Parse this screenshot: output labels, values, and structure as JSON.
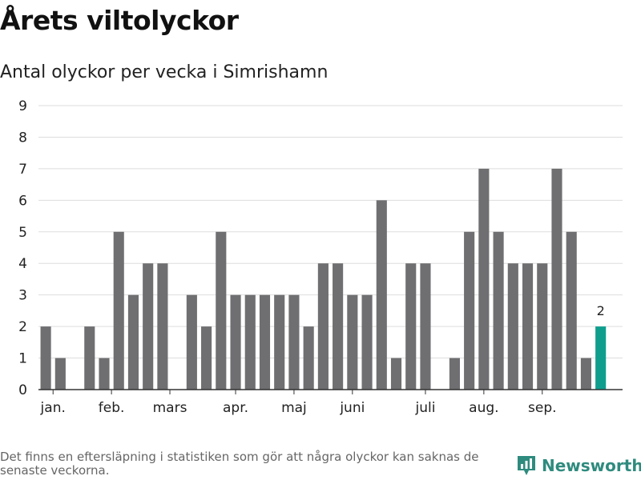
{
  "title": "Årets viltolyckor",
  "subtitle": "Antal olyckor per vecka i Simrishamn",
  "footnote": "Det finns en eftersläpning i statistiken som gör att några olyckor kan saknas de senaste veckorna.",
  "brand": {
    "name": "Newsworthy",
    "icon": "newsworthy-logo-icon",
    "color": "#2e8b7e"
  },
  "colors": {
    "bar": "#6f6f72",
    "highlight": "#0f9e8e",
    "grid": "#dddddd",
    "axis": "#333333"
  },
  "chart_data": {
    "type": "bar",
    "x": [
      1,
      2,
      3,
      4,
      5,
      6,
      7,
      8,
      9,
      10,
      11,
      12,
      13,
      14,
      15,
      16,
      17,
      18,
      19,
      20,
      21,
      22,
      23,
      24,
      25,
      26,
      27,
      28,
      29,
      30,
      31,
      32,
      33,
      34,
      35,
      36,
      37,
      38,
      39,
      40
    ],
    "values": [
      2,
      1,
      0,
      2,
      1,
      5,
      3,
      4,
      4,
      0,
      3,
      2,
      5,
      3,
      3,
      3,
      3,
      3,
      2,
      4,
      4,
      3,
      3,
      6,
      1,
      4,
      4,
      0,
      1,
      5,
      7,
      5,
      4,
      4,
      4,
      7,
      5,
      1,
      2,
      null
    ],
    "highlight_index": 38,
    "highlight_label": "2",
    "yticks": [
      "0",
      "1",
      "2",
      "3",
      "4",
      "5",
      "6",
      "7",
      "8",
      "9"
    ],
    "ylim": [
      0,
      9
    ],
    "xtick_labels": [
      {
        "label": "jan.",
        "pos": 1.5
      },
      {
        "label": "feb.",
        "pos": 5.5
      },
      {
        "label": "mars",
        "pos": 9.5
      },
      {
        "label": "apr.",
        "pos": 14
      },
      {
        "label": "maj",
        "pos": 18
      },
      {
        "label": "juni",
        "pos": 22
      },
      {
        "label": "juli",
        "pos": 27
      },
      {
        "label": "aug.",
        "pos": 31
      },
      {
        "label": "sep.",
        "pos": 35
      }
    ],
    "grid": true
  }
}
